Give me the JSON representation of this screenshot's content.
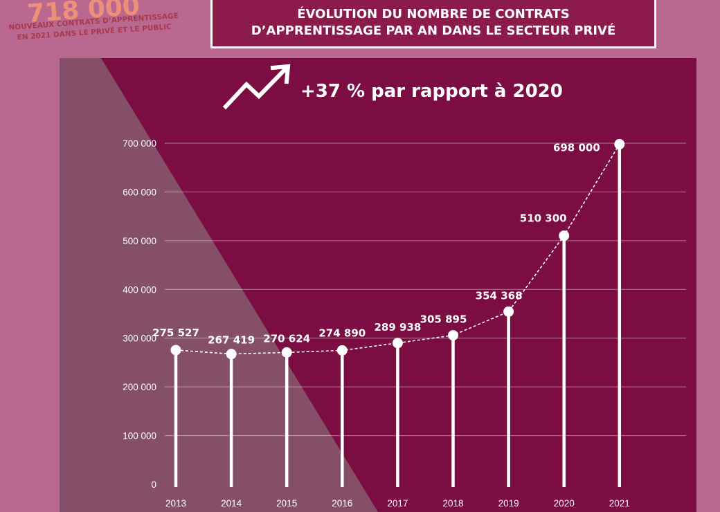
{
  "highlight": {
    "number": "718 000",
    "caption_line1": "NOUVEAUX CONTRATS D’APPRENTISSAGE",
    "caption_line2": "EN 2021 DANS LE PRIVÉ ET LE PUBLIC"
  },
  "title_line1": "ÉVOLUTION DU NOMBRE DE CONTRATS",
  "title_line2": "D’APPRENTISSAGE PAR AN DANS LE SECTEUR PRIVÉ",
  "growth_text": "+37 % par rapport à 2020",
  "colors": {
    "page_bg": "#b9698f",
    "panel": "#7b0d42",
    "panel_shade": "#855067",
    "highlight_number": "#ee8f7a",
    "line": "#ffffff"
  },
  "icons": {
    "growth": "trend-up-arrow-icon"
  },
  "chart_data": {
    "type": "line",
    "categories": [
      "2013",
      "2014",
      "2015",
      "2016",
      "2017",
      "2018",
      "2019",
      "2020",
      "2021"
    ],
    "values": [
      275527,
      267419,
      270624,
      274890,
      289938,
      305895,
      354368,
      510300,
      698000
    ],
    "data_labels": [
      "275 527",
      "267 419",
      "270 624",
      "274 890",
      "289 938",
      "305 895",
      "354 368",
      "510 300",
      "698 000"
    ],
    "ylim": [
      0,
      700000
    ],
    "yticks": [
      0,
      100000,
      200000,
      300000,
      400000,
      500000,
      600000,
      700000
    ],
    "ytick_labels": [
      "0",
      "100 000",
      "200 000",
      "300 000",
      "400 000",
      "500 000",
      "600 000",
      "700 000"
    ],
    "grid": true,
    "style": "dashed line with dots and vertical stems"
  }
}
